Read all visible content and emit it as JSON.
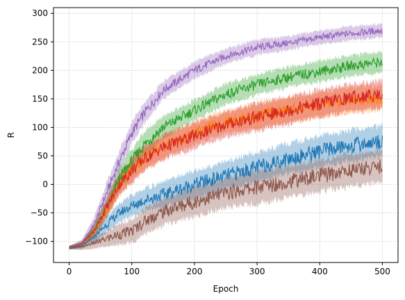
{
  "chart_data": {
    "type": "line",
    "title": "",
    "xlabel": "Epoch",
    "ylabel": "R",
    "xlim": [
      -25,
      525
    ],
    "ylim": [
      -137,
      310
    ],
    "xticks": [
      0,
      100,
      200,
      300,
      400,
      500
    ],
    "yticks": [
      -100,
      -50,
      0,
      50,
      100,
      150,
      200,
      250,
      300
    ],
    "xtick_labels": [
      "0",
      "100",
      "200",
      "300",
      "400",
      "500"
    ],
    "ytick_labels": [
      "−100",
      "−50",
      "0",
      "50",
      "100",
      "150",
      "200",
      "250",
      "300"
    ],
    "grid": true,
    "legend": "none",
    "series": [
      {
        "color": "#9467bd",
        "x": [
          0,
          20,
          40,
          60,
          80,
          100,
          120,
          150,
          200,
          250,
          300,
          350,
          400,
          450,
          500
        ],
        "y": [
          -111,
          -103,
          -70,
          -15,
          40,
          90,
          125,
          165,
          200,
          225,
          240,
          248,
          258,
          265,
          270
        ],
        "band": [
          3,
          6,
          12,
          18,
          18,
          18,
          18,
          15,
          15,
          13,
          13,
          12,
          12,
          12,
          12
        ]
      },
      {
        "color": "#2ca02c",
        "x": [
          0,
          20,
          40,
          60,
          80,
          100,
          120,
          150,
          200,
          250,
          300,
          350,
          400,
          450,
          500
        ],
        "y": [
          -111,
          -105,
          -80,
          -40,
          10,
          40,
          70,
          100,
          130,
          158,
          175,
          188,
          198,
          208,
          215
        ],
        "band": [
          3,
          5,
          10,
          15,
          20,
          22,
          22,
          20,
          18,
          18,
          18,
          18,
          18,
          18,
          18
        ]
      },
      {
        "color": "#ff7f0e",
        "x": [
          0,
          20,
          40,
          60,
          80,
          100,
          120,
          150,
          200,
          250,
          300,
          350,
          400,
          450,
          500
        ],
        "y": [
          -111,
          -106,
          -85,
          -45,
          0,
          25,
          45,
          65,
          90,
          110,
          120,
          130,
          140,
          148,
          152
        ],
        "band": [
          3,
          5,
          10,
          15,
          18,
          20,
          20,
          20,
          20,
          20,
          22,
          22,
          22,
          22,
          22
        ]
      },
      {
        "color": "#d62728",
        "x": [
          0,
          20,
          40,
          60,
          80,
          100,
          120,
          150,
          200,
          250,
          300,
          350,
          400,
          450,
          500
        ],
        "y": [
          -111,
          -105,
          -82,
          -40,
          0,
          25,
          45,
          65,
          85,
          105,
          118,
          130,
          142,
          152,
          158
        ],
        "band": [
          3,
          5,
          10,
          16,
          20,
          22,
          22,
          22,
          22,
          22,
          24,
          24,
          24,
          24,
          24
        ]
      },
      {
        "color": "#1f77b4",
        "x": [
          0,
          20,
          40,
          60,
          80,
          100,
          120,
          150,
          200,
          250,
          300,
          350,
          400,
          450,
          500
        ],
        "y": [
          -111,
          -108,
          -92,
          -70,
          -50,
          -38,
          -28,
          -18,
          0,
          15,
          30,
          45,
          58,
          68,
          76
        ],
        "band": [
          3,
          5,
          10,
          14,
          16,
          18,
          20,
          22,
          24,
          25,
          26,
          26,
          27,
          27,
          27
        ]
      },
      {
        "color": "#8c564b",
        "x": [
          0,
          20,
          40,
          60,
          80,
          100,
          120,
          150,
          200,
          250,
          300,
          350,
          400,
          450,
          500
        ],
        "y": [
          -111,
          -110,
          -103,
          -95,
          -88,
          -82,
          -65,
          -48,
          -30,
          -15,
          -5,
          5,
          15,
          25,
          32
        ],
        "band": [
          3,
          5,
          10,
          14,
          18,
          20,
          22,
          24,
          26,
          26,
          28,
          28,
          28,
          28,
          28
        ]
      }
    ]
  }
}
